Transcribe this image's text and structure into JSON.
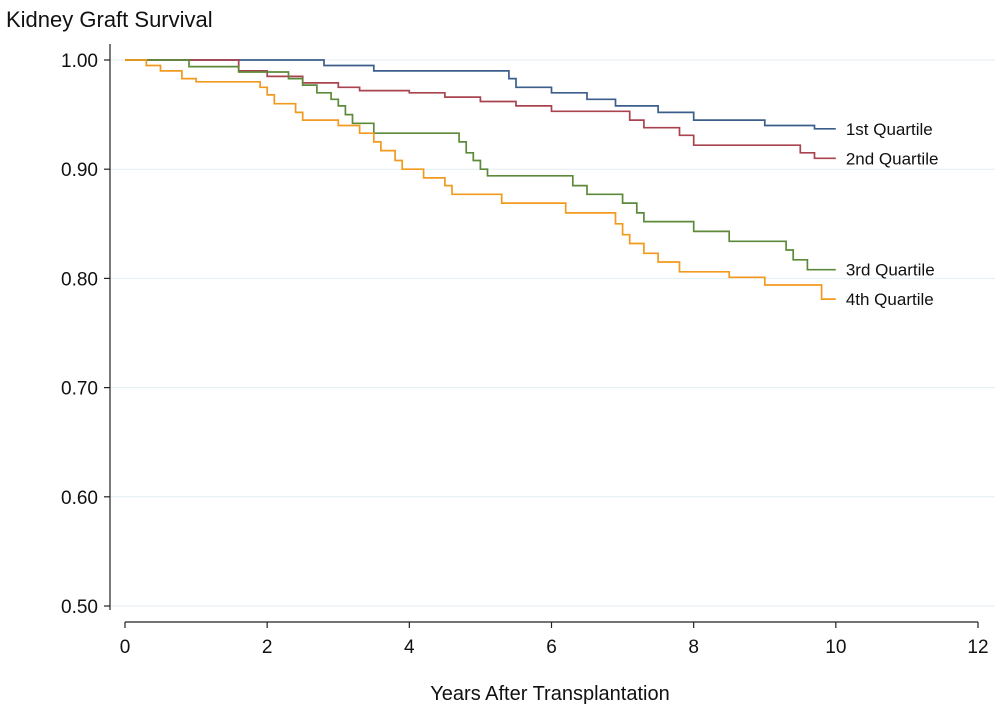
{
  "chart_data": {
    "type": "line",
    "title": "Kidney Graft Survival",
    "xlabel": "Years After Transplantation",
    "ylabel": "",
    "xlim": [
      0,
      12
    ],
    "ylim": [
      0.5,
      1.0
    ],
    "x_ticks": [
      0,
      2,
      4,
      6,
      8,
      10,
      12
    ],
    "x_tick_labels": [
      "0",
      "2",
      "4",
      "6",
      "8",
      "10",
      "12"
    ],
    "y_ticks": [
      0.5,
      0.6,
      0.7,
      0.8,
      0.9,
      1.0
    ],
    "y_tick_labels": [
      "0.50",
      "0.60",
      "0.70",
      "0.80",
      "0.90",
      "1.00"
    ],
    "grid": true,
    "legend": "inline labels at curve ends",
    "series": [
      {
        "name": "1st Quartile",
        "color": "#3b5e8c",
        "steps": [
          [
            0,
            1.0
          ],
          [
            2.8,
            0.995
          ],
          [
            3.5,
            0.99
          ],
          [
            5.4,
            0.983
          ],
          [
            5.5,
            0.975
          ],
          [
            6.0,
            0.97
          ],
          [
            6.5,
            0.964
          ],
          [
            6.9,
            0.958
          ],
          [
            7.5,
            0.952
          ],
          [
            8.0,
            0.945
          ],
          [
            9.0,
            0.94
          ],
          [
            9.7,
            0.937
          ],
          [
            10,
            0.937
          ]
        ]
      },
      {
        "name": "2nd Quartile",
        "color": "#a8434f",
        "steps": [
          [
            0,
            1.0
          ],
          [
            1.6,
            0.99
          ],
          [
            2.0,
            0.985
          ],
          [
            2.5,
            0.979
          ],
          [
            3.0,
            0.975
          ],
          [
            3.3,
            0.972
          ],
          [
            4.0,
            0.97
          ],
          [
            4.5,
            0.966
          ],
          [
            5.0,
            0.962
          ],
          [
            5.5,
            0.958
          ],
          [
            6.0,
            0.953
          ],
          [
            7.1,
            0.945
          ],
          [
            7.3,
            0.938
          ],
          [
            7.8,
            0.931
          ],
          [
            8.0,
            0.922
          ],
          [
            9.5,
            0.915
          ],
          [
            9.7,
            0.91
          ],
          [
            10,
            0.91
          ]
        ]
      },
      {
        "name": "3rd Quartile",
        "color": "#5c8a3a",
        "steps": [
          [
            0,
            1.0
          ],
          [
            0.9,
            0.994
          ],
          [
            1.6,
            0.989
          ],
          [
            2.3,
            0.983
          ],
          [
            2.5,
            0.977
          ],
          [
            2.7,
            0.97
          ],
          [
            2.9,
            0.964
          ],
          [
            3.0,
            0.958
          ],
          [
            3.1,
            0.95
          ],
          [
            3.2,
            0.942
          ],
          [
            3.5,
            0.933
          ],
          [
            4.7,
            0.925
          ],
          [
            4.8,
            0.915
          ],
          [
            4.9,
            0.908
          ],
          [
            5.0,
            0.9
          ],
          [
            5.1,
            0.894
          ],
          [
            6.3,
            0.885
          ],
          [
            6.5,
            0.877
          ],
          [
            7.0,
            0.869
          ],
          [
            7.2,
            0.86
          ],
          [
            7.3,
            0.852
          ],
          [
            8.0,
            0.843
          ],
          [
            8.5,
            0.834
          ],
          [
            9.3,
            0.826
          ],
          [
            9.4,
            0.817
          ],
          [
            9.6,
            0.808
          ],
          [
            10,
            0.808
          ]
        ]
      },
      {
        "name": "4th Quartile",
        "color": "#f29a1d",
        "steps": [
          [
            0,
            1.0
          ],
          [
            0.3,
            0.995
          ],
          [
            0.5,
            0.99
          ],
          [
            0.8,
            0.983
          ],
          [
            1.0,
            0.98
          ],
          [
            1.9,
            0.975
          ],
          [
            2.0,
            0.968
          ],
          [
            2.1,
            0.96
          ],
          [
            2.4,
            0.952
          ],
          [
            2.5,
            0.945
          ],
          [
            3.0,
            0.94
          ],
          [
            3.3,
            0.933
          ],
          [
            3.5,
            0.925
          ],
          [
            3.6,
            0.917
          ],
          [
            3.8,
            0.908
          ],
          [
            3.9,
            0.9
          ],
          [
            4.2,
            0.892
          ],
          [
            4.5,
            0.885
          ],
          [
            4.6,
            0.877
          ],
          [
            5.3,
            0.869
          ],
          [
            6.2,
            0.86
          ],
          [
            6.9,
            0.85
          ],
          [
            7.0,
            0.84
          ],
          [
            7.1,
            0.832
          ],
          [
            7.3,
            0.823
          ],
          [
            7.5,
            0.815
          ],
          [
            7.8,
            0.806
          ],
          [
            8.5,
            0.801
          ],
          [
            9.0,
            0.794
          ],
          [
            9.8,
            0.781
          ],
          [
            10,
            0.781
          ]
        ]
      }
    ]
  }
}
